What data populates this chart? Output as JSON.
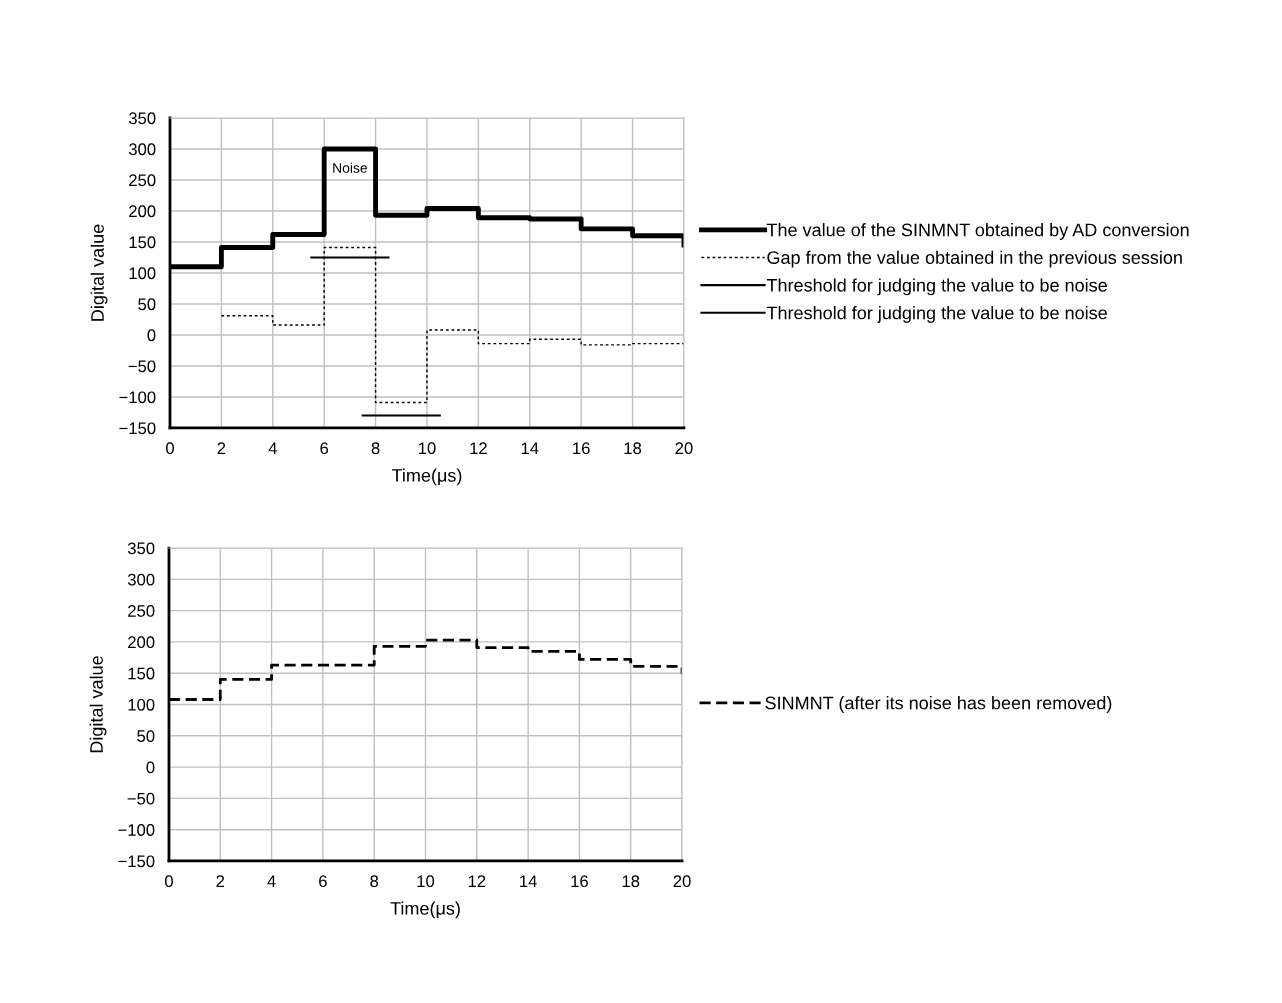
{
  "chart_data": [
    {
      "type": "step",
      "xlabel": "Time(μs)",
      "ylabel": "Digital value",
      "xlim": [
        0,
        20
      ],
      "xticks": [
        0,
        2,
        4,
        6,
        8,
        10,
        12,
        14,
        16,
        18,
        20
      ],
      "ylim": [
        -150,
        350
      ],
      "yticks": [
        {
          "value": -150,
          "label": "−150"
        },
        {
          "value": -100,
          "label": "−100"
        },
        {
          "value": -50,
          "label": "−50"
        },
        0,
        50,
        100,
        150,
        200,
        250,
        300,
        350
      ],
      "grid": true,
      "legend": "right",
      "annotations": [
        "Noise"
      ],
      "series": [
        {
          "name": "The value of the SINMNT obtained by AD conversion",
          "color": "#000000",
          "line_style": "solid",
          "x": [
            0,
            2,
            4,
            6,
            8,
            10,
            12,
            14,
            16,
            18,
            20
          ],
          "values": [
            110,
            141,
            162,
            300,
            193,
            204,
            189,
            187,
            171,
            160,
            145
          ]
        },
        {
          "name": "Gap from the value obtained in the previous session",
          "color": "#000000",
          "line_style": "dotted",
          "x": [
            2,
            4,
            6,
            8,
            10,
            12,
            14,
            16,
            18,
            20
          ],
          "values": [
            31,
            16,
            141,
            -109,
            8,
            -14,
            -7,
            -16,
            -14,
            -14
          ]
        },
        {
          "name": "Threshold for judging the value to be noise",
          "type": "line",
          "color": "#000000",
          "line_style": "solid",
          "x": [
            5.5,
            8.5
          ],
          "values": [
            125,
            125
          ]
        },
        {
          "name": "Threshold for judging the value to be noise",
          "type": "line",
          "color": "#000000",
          "line_style": "solid",
          "x": [
            7.5,
            10.5
          ],
          "values": [
            -130,
            -130
          ]
        }
      ]
    },
    {
      "type": "step",
      "xlabel": "Time(μs)",
      "ylabel": "Digital value",
      "xlim": [
        0,
        20
      ],
      "xticks": [
        0,
        2,
        4,
        6,
        8,
        10,
        12,
        14,
        16,
        18,
        20
      ],
      "ylim": [
        -150,
        350
      ],
      "yticks": [
        {
          "value": -150,
          "label": "−150"
        },
        {
          "value": -100,
          "label": "−100"
        },
        {
          "value": -50,
          "label": "−50"
        },
        0,
        50,
        100,
        150,
        200,
        250,
        300,
        350
      ],
      "grid": true,
      "legend": "right",
      "series": [
        {
          "name": "SINMNT (after its noise has been removed)",
          "color": "#000000",
          "line_style": "dashed",
          "x": [
            0,
            2,
            4,
            6,
            8,
            10,
            12,
            14,
            16,
            18,
            20
          ],
          "values": [
            108,
            140,
            163,
            163,
            193,
            203,
            191,
            185,
            172,
            161,
            149
          ]
        }
      ]
    }
  ]
}
